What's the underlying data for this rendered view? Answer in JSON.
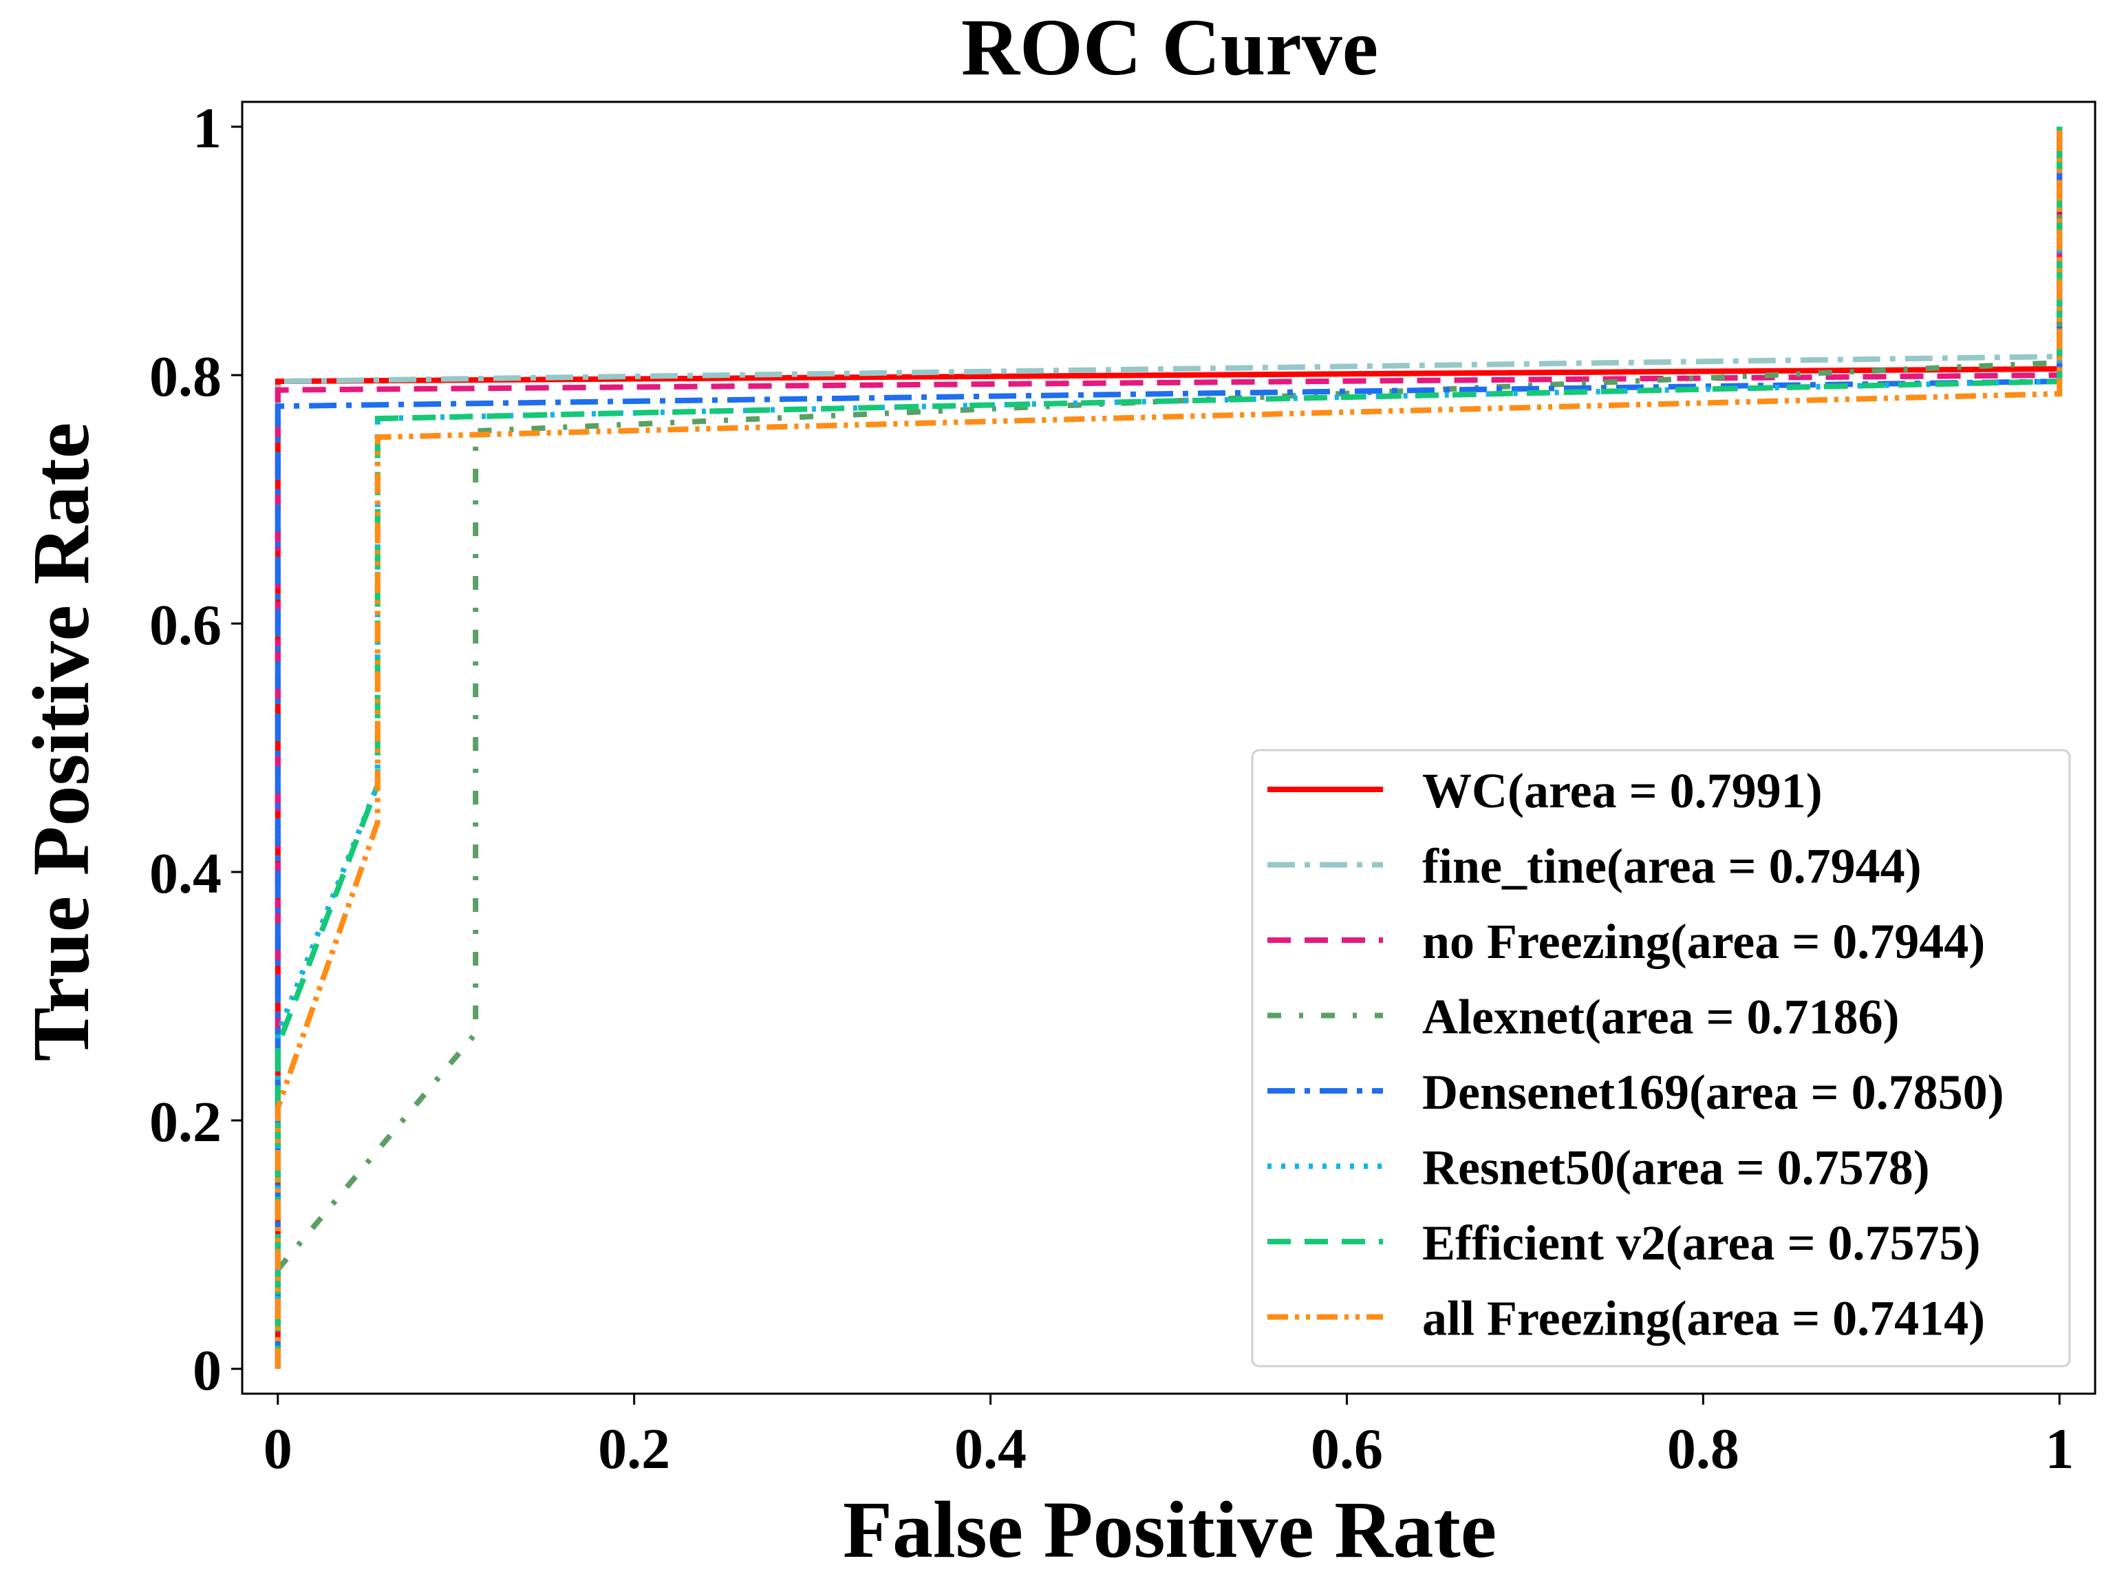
{
  "chart_data": {
    "type": "line",
    "title": "ROC Curve",
    "xlabel": "False Positive Rate",
    "ylabel": "True Positive Rate",
    "xlim": [
      -0.02,
      1.02
    ],
    "ylim": [
      -0.02,
      1.02
    ],
    "xticks": [
      {
        "value": 0,
        "label": "0"
      },
      {
        "value": 0.2,
        "label": "0.2"
      },
      {
        "value": 0.4,
        "label": "0.4"
      },
      {
        "value": 0.6,
        "label": "0.6"
      },
      {
        "value": 0.8,
        "label": "0.8"
      },
      {
        "value": 1,
        "label": "1"
      }
    ],
    "yticks": [
      {
        "value": 0,
        "label": "0"
      },
      {
        "value": 0.2,
        "label": "0.2"
      },
      {
        "value": 0.4,
        "label": "0.4"
      },
      {
        "value": 0.6,
        "label": "0.6"
      },
      {
        "value": 0.8,
        "label": "0.8"
      },
      {
        "value": 1,
        "label": "1"
      }
    ],
    "grid": false,
    "legend_position": "lower-right",
    "series": [
      {
        "name": "WC(area = 0.7991)",
        "color": "#ff0000",
        "dash": "solid",
        "x": [
          0,
          0,
          1,
          1
        ],
        "y": [
          0,
          0.795,
          0.805,
          1.0
        ]
      },
      {
        "name": "fine_tine(area = 0.7944)",
        "color": "#96c8c8",
        "dash": "dashdot",
        "x": [
          0,
          0,
          1,
          1
        ],
        "y": [
          0,
          0.795,
          0.815,
          1.0
        ]
      },
      {
        "name": "no Freezing(area = 0.7944)",
        "color": "#e6197d",
        "dash": "dash",
        "x": [
          0,
          0,
          1,
          1
        ],
        "y": [
          0,
          0.788,
          0.8,
          1.0
        ]
      },
      {
        "name": "Alexnet(area = 0.7186)",
        "color": "#5aa064",
        "dash": "dashdot-sparse",
        "x": [
          0,
          0.111,
          0.111,
          1,
          1
        ],
        "y": [
          0.08,
          0.27,
          0.755,
          0.81,
          1.0
        ]
      },
      {
        "name": "Densenet169(area = 0.7850)",
        "color": "#1e6ef0",
        "dash": "dashdot",
        "x": [
          0,
          0,
          1,
          1
        ],
        "y": [
          0,
          0.775,
          0.795,
          1.0
        ]
      },
      {
        "name": "Resnet50(area = 0.7578)",
        "color": "#14b4e6",
        "dash": "dotted",
        "x": [
          0,
          0,
          0.056,
          0.056,
          1,
          1
        ],
        "y": [
          0,
          0.27,
          0.47,
          0.765,
          0.795,
          1.0
        ]
      },
      {
        "name": "Efficient v2(area = 0.7575)",
        "color": "#14c878",
        "dash": "dash",
        "x": [
          0,
          0,
          0.056,
          0.056,
          1,
          1
        ],
        "y": [
          0,
          0.26,
          0.47,
          0.765,
          0.795,
          1.0
        ]
      },
      {
        "name": "all Freezing(area = 0.7414)",
        "color": "#ff8c14",
        "dash": "dashdotdot",
        "x": [
          0,
          0,
          0.056,
          0.056,
          1,
          1
        ],
        "y": [
          0,
          0.21,
          0.44,
          0.75,
          0.785,
          1.0
        ]
      }
    ]
  }
}
